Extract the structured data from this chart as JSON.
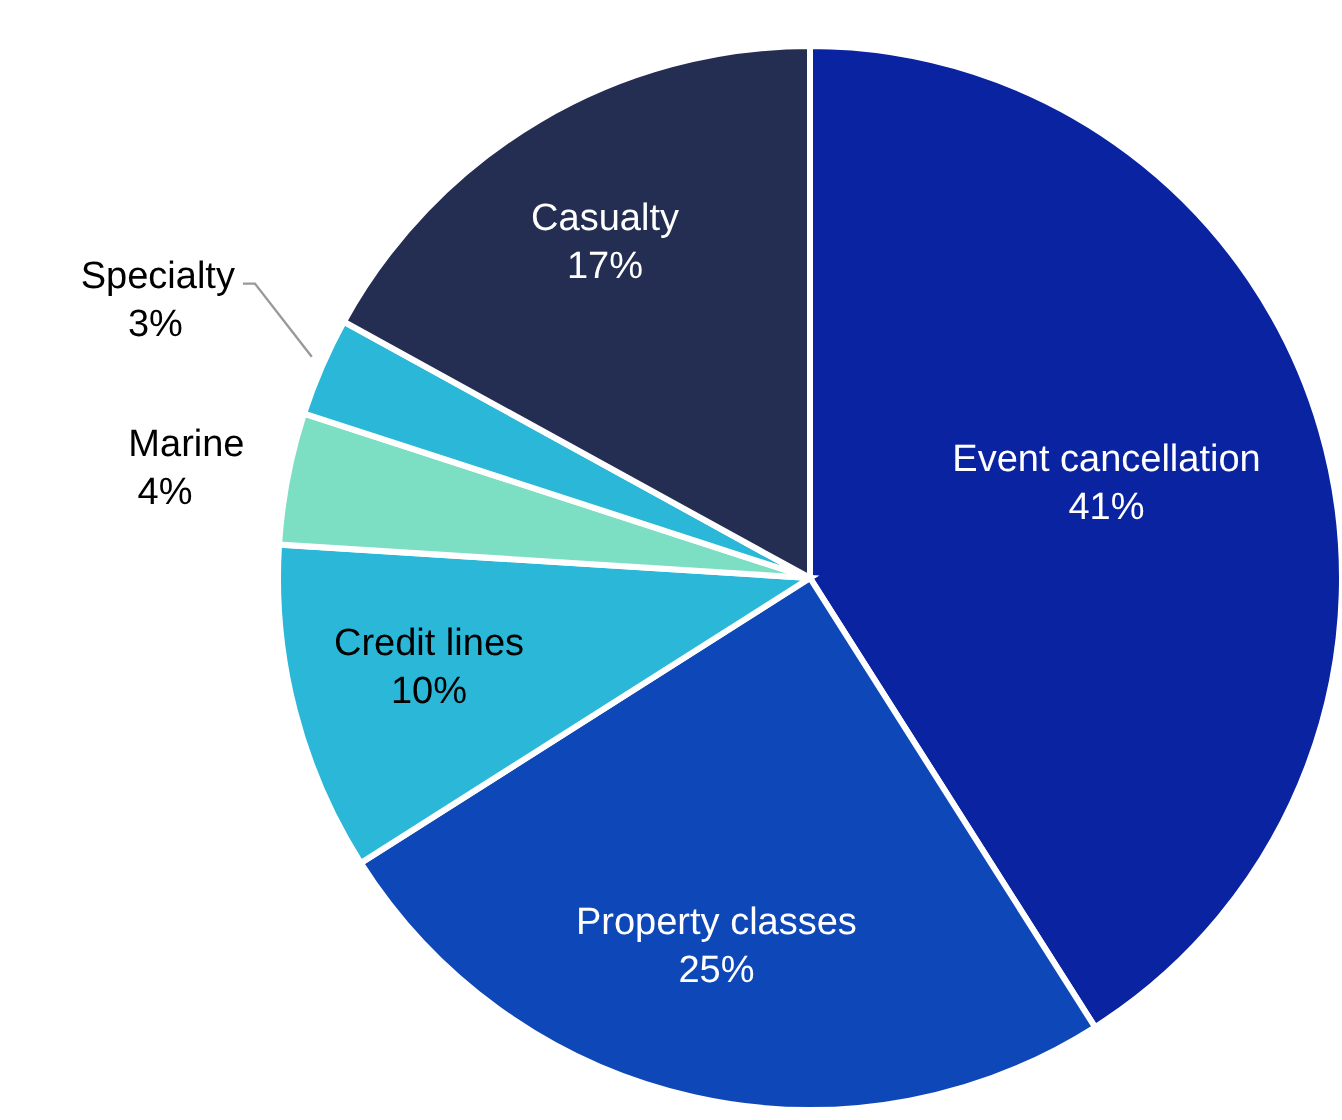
{
  "chart_data": {
    "type": "pie",
    "categories": [
      "Event cancellation",
      "Property classes",
      "Credit lines",
      "Marine",
      "Specialty",
      "Casualty"
    ],
    "values": [
      41,
      25,
      10,
      4,
      3,
      17
    ],
    "value_labels": [
      "41%",
      "25%",
      "10%",
      "4%",
      "3%",
      "17%"
    ],
    "colors": [
      "#0a23a0",
      "#0e48b8",
      "#2bb8d8",
      "#7cdfc3",
      "#2bb8d8",
      "#242d52"
    ],
    "legend": false
  }
}
